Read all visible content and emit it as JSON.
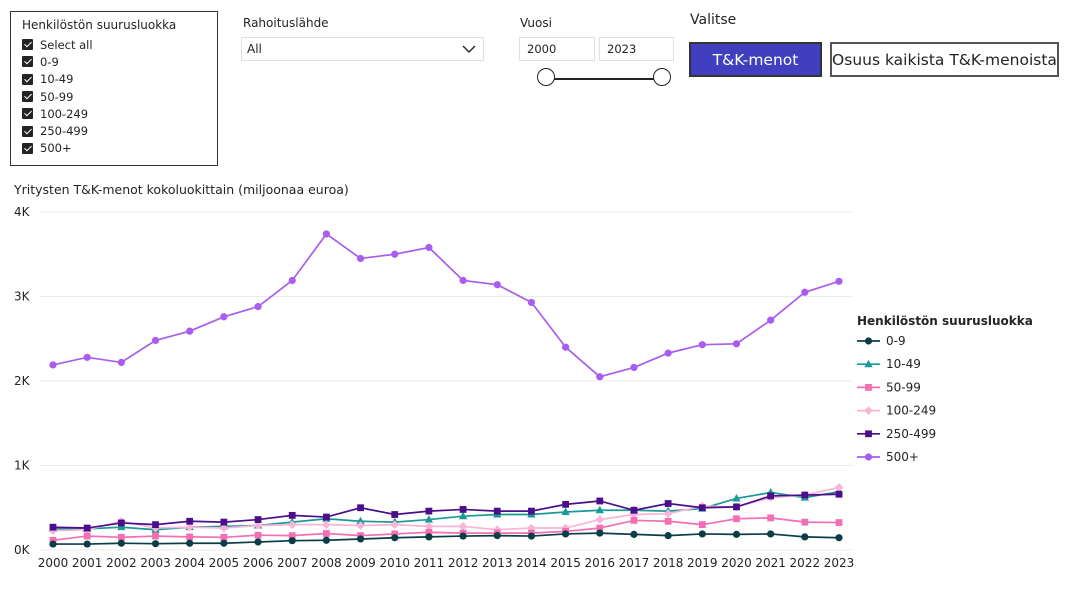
{
  "slicer": {
    "title": "Henkilöstön suurusluokka",
    "items": [
      "Select all",
      "0-9",
      "10-49",
      "50-99",
      "100-249",
      "250-499",
      "500+"
    ]
  },
  "funding": {
    "label": "Rahoituslähde",
    "value": "All"
  },
  "year": {
    "label": "Vuosi",
    "from": "2000",
    "to": "2023"
  },
  "choose": {
    "label": "Valitse",
    "btn_primary": "T&K-menot",
    "btn_secondary": "Osuus kaikista T&K-menoista"
  },
  "chart_data": {
    "type": "line",
    "title": "Yritysten T&K-menot kokoluokittain (miljoonaa euroa)",
    "x": [
      2000,
      2001,
      2002,
      2003,
      2004,
      2005,
      2006,
      2007,
      2008,
      2009,
      2010,
      2011,
      2012,
      2013,
      2014,
      2015,
      2016,
      2017,
      2018,
      2019,
      2020,
      2021,
      2022,
      2023
    ],
    "y_ticks": [
      "0K",
      "1K",
      "2K",
      "3K",
      "4K"
    ],
    "ylim": [
      0,
      4000
    ],
    "legend": {
      "title": "Henkilöstön suurusluokka",
      "position": "right"
    },
    "gridlines": true,
    "series": [
      {
        "name": "0-9",
        "color": "#0b3d48",
        "marker": "circle",
        "values": [
          70,
          70,
          80,
          75,
          80,
          80,
          95,
          110,
          115,
          130,
          145,
          155,
          165,
          170,
          165,
          190,
          200,
          185,
          170,
          190,
          185,
          190,
          155,
          145
        ]
      },
      {
        "name": "10-49",
        "color": "#1a9a96",
        "marker": "triangle",
        "values": [
          250,
          250,
          270,
          240,
          270,
          280,
          290,
          330,
          370,
          340,
          330,
          360,
          400,
          420,
          420,
          450,
          470,
          470,
          460,
          490,
          610,
          680,
          620,
          690
        ]
      },
      {
        "name": "50-99",
        "color": "#f46eb4",
        "marker": "square",
        "values": [
          115,
          165,
          150,
          165,
          155,
          150,
          175,
          170,
          195,
          170,
          190,
          210,
          200,
          200,
          200,
          220,
          260,
          350,
          340,
          300,
          370,
          380,
          330,
          325
        ]
      },
      {
        "name": "100-249",
        "color": "#f9b4d8",
        "marker": "diamond",
        "values": [
          230,
          240,
          340,
          260,
          270,
          260,
          290,
          300,
          300,
          290,
          300,
          280,
          280,
          240,
          260,
          260,
          360,
          420,
          430,
          520,
          510,
          620,
          650,
          740
        ]
      },
      {
        "name": "250-499",
        "color": "#4b0f8c",
        "marker": "square",
        "values": [
          270,
          260,
          320,
          300,
          340,
          330,
          360,
          410,
          390,
          500,
          420,
          460,
          480,
          460,
          460,
          540,
          580,
          470,
          550,
          500,
          510,
          640,
          650,
          660
        ]
      },
      {
        "name": "500+",
        "color": "#a85cf0",
        "marker": "circle",
        "values": [
          2190,
          2280,
          2220,
          2480,
          2590,
          2760,
          2880,
          3190,
          3740,
          3450,
          3500,
          3580,
          3190,
          3140,
          2930,
          2400,
          2050,
          2160,
          2330,
          2430,
          2440,
          2720,
          3050,
          3180
        ]
      }
    ]
  }
}
